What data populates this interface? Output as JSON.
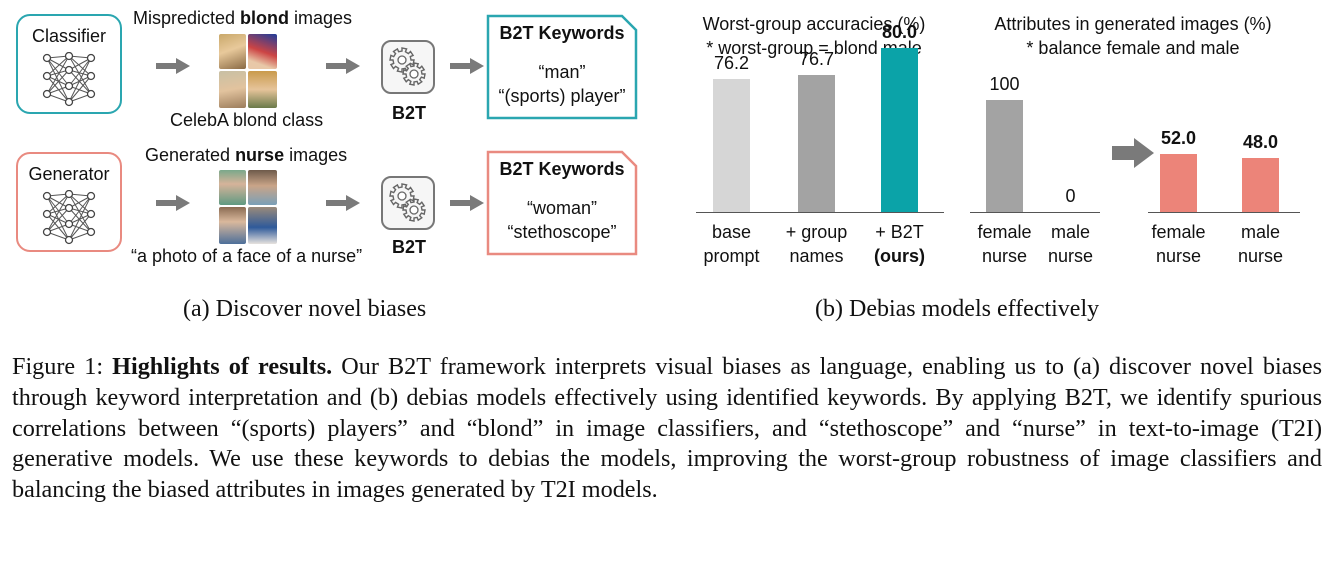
{
  "panel_a": {
    "row1": {
      "model_label": "Classifier",
      "caption_pre": "Mispredicted ",
      "caption_bold": "blond",
      "caption_post": " images",
      "below_caption": "CelebA blond class",
      "tool_label": "B2T",
      "kw_title": "B2T Keywords",
      "kw_line1": "“man”",
      "kw_line2": "“(sports) player”",
      "accent": "#2aa6b0"
    },
    "row2": {
      "model_label": "Generator",
      "caption_pre": "Generated ",
      "caption_bold": "nurse",
      "caption_post": " images",
      "below_caption": "“a photo of a face of a nurse”",
      "tool_label": "B2T",
      "kw_title": "B2T Keywords",
      "kw_line1": "“woman”",
      "kw_line2": "“stethoscope”",
      "accent": "#e98a80"
    },
    "subcaption": "(a) Discover novel biases"
  },
  "panel_b": {
    "subcaption": "(b) Debias models effectively"
  },
  "chart_data": [
    {
      "type": "bar",
      "title": "Worst-group accuracies (%)",
      "subtitle": "* worst-group = blond male",
      "categories": [
        {
          "line1": "base",
          "line2": "prompt",
          "bold2": false
        },
        {
          "line1": "+ group",
          "line2": "names",
          "bold2": false
        },
        {
          "line1": "+ B2T",
          "line2": "(ours)",
          "bold2": true
        }
      ],
      "values": [
        76.2,
        76.7,
        80.0
      ],
      "value_labels": [
        "76.2",
        "76.7",
        "80.0"
      ],
      "highlight": [
        false,
        false,
        true
      ],
      "colors": [
        "#d6d6d6",
        "#a3a3a3",
        "#0ba3a8"
      ],
      "ylim": [
        60,
        82
      ]
    },
    {
      "type": "bar",
      "title": "Attributes in generated images (%)",
      "subtitle": "* balance female and male",
      "groups": [
        {
          "categories": [
            {
              "line1": "female",
              "line2": "nurse"
            },
            {
              "line1": "male",
              "line2": "nurse"
            }
          ],
          "values": [
            100,
            0
          ],
          "value_labels": [
            "100",
            "0"
          ],
          "bold": false,
          "color": "#a3a3a3"
        },
        {
          "categories": [
            {
              "line1": "female",
              "line2": "nurse"
            },
            {
              "line1": "male",
              "line2": "nurse"
            }
          ],
          "values": [
            52.0,
            48.0
          ],
          "value_labels": [
            "52.0",
            "48.0"
          ],
          "bold": true,
          "color": "#ec8479"
        }
      ],
      "ylim": [
        0,
        100
      ]
    }
  ],
  "figure_caption": {
    "label": "Figure 1: ",
    "bold": "Highlights of results.",
    "body": " Our B2T framework interprets visual biases as language, enabling us to (a) discover novel biases through keyword interpretation and (b) debias models effectively using identified keywords. By applying B2T, we identify spurious correlations between “(sports) players” and “blond” in image classifiers, and “stethoscope” and “nurse” in text-to-image (T2I) generative models. We use these keywords to debias the models, improving the worst-group robustness of image classifiers and balancing the biased attributes in images generated by T2I models."
  }
}
